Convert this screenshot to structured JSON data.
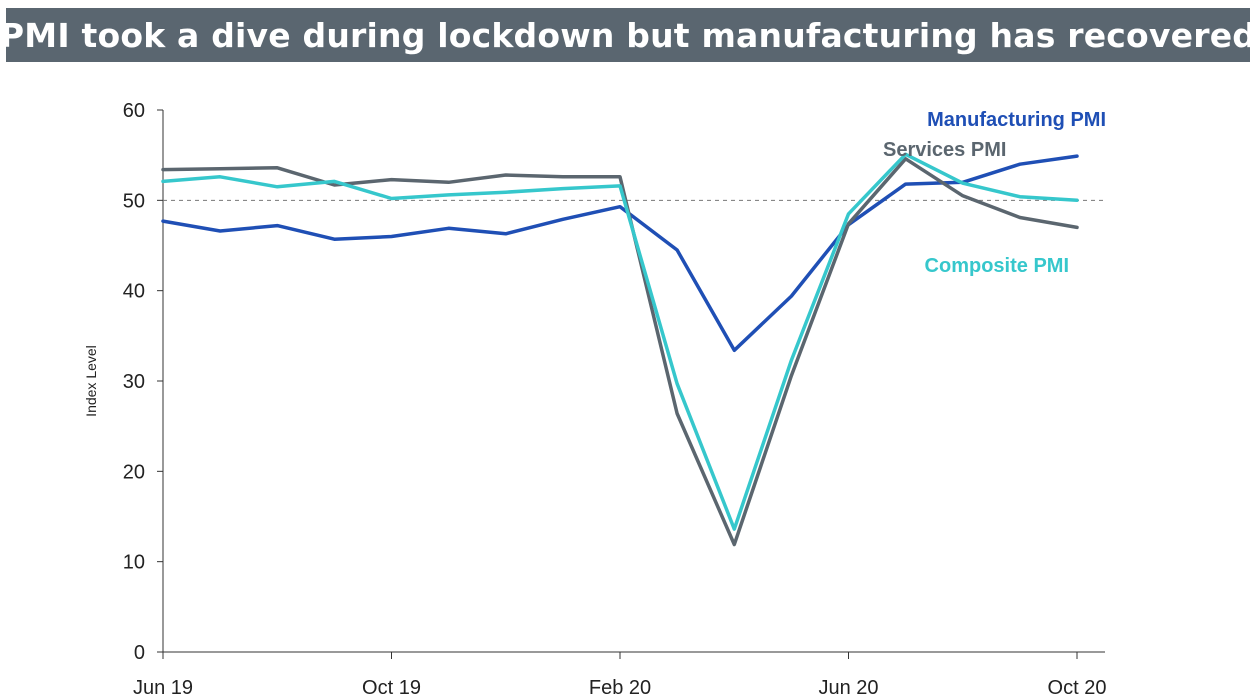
{
  "title": "PMI took a dive during lockdown but manufacturing has recovered",
  "chart_data": {
    "type": "line",
    "ylabel": "Index Level",
    "ylim": [
      0,
      60
    ],
    "yticks": [
      0,
      10,
      20,
      30,
      40,
      50,
      60
    ],
    "x": [
      "Jun 19",
      "Jul 19",
      "Aug 19",
      "Sep 19",
      "Oct 19",
      "Nov 19",
      "Dec 19",
      "Jan 20",
      "Feb 20",
      "Mar 20",
      "Apr 20",
      "May 20",
      "Jun 20",
      "Jul 20",
      "Aug 20",
      "Sep 20",
      "Oct 20"
    ],
    "x_tick_labels": [
      "Jun 19",
      "Oct 19",
      "Feb 20",
      "Jun 20",
      "Oct 20"
    ],
    "reference_line": 50,
    "grid": false,
    "legend": "inline-top-right",
    "series": [
      {
        "name": "Manufacturing PMI",
        "color": "#1f4fb5",
        "values": [
          47.7,
          46.6,
          47.2,
          45.7,
          46.0,
          46.9,
          46.3,
          47.9,
          49.3,
          44.5,
          33.4,
          39.4,
          47.3,
          51.8,
          52.0,
          54.0,
          54.9
        ]
      },
      {
        "name": "Services PMI",
        "color": "#5b666f",
        "values": [
          53.4,
          53.5,
          53.6,
          51.7,
          52.3,
          52.0,
          52.8,
          52.6,
          52.6,
          26.4,
          11.9,
          30.6,
          47.4,
          54.6,
          50.5,
          48.1,
          47.0
        ]
      },
      {
        "name": "Composite PMI",
        "color": "#36c7cc",
        "values": [
          52.1,
          52.6,
          51.5,
          52.1,
          50.2,
          50.6,
          50.9,
          51.3,
          51.6,
          29.7,
          13.6,
          32.3,
          48.5,
          55.1,
          51.9,
          50.4,
          50.0
        ]
      }
    ]
  }
}
